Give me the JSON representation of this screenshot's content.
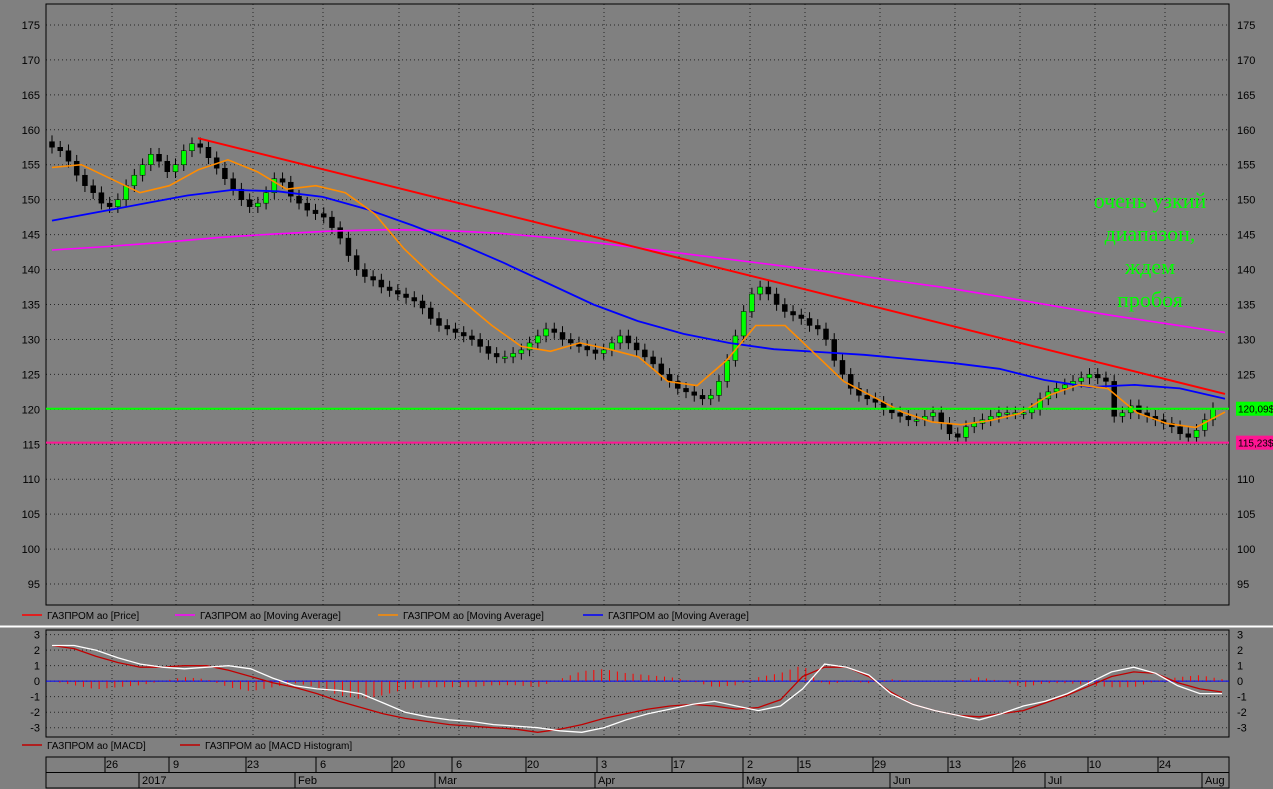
{
  "chart_data": [
    {
      "type": "candlestick",
      "title": "",
      "ylim": [
        92,
        178
      ],
      "yticks": [
        95,
        100,
        105,
        110,
        115,
        120,
        125,
        130,
        135,
        140,
        145,
        150,
        155,
        160,
        165,
        170,
        175
      ],
      "grid": true,
      "colors": {
        "up": "#00ff00",
        "down": "#000000",
        "ma_long": "#ff00ff",
        "ma_mid": "#0000ff",
        "ma_short": "#ff8c00",
        "trendline": "#ff0000",
        "support": "#00ff00",
        "low_level": "#ff1493"
      },
      "close_series": [
        157.5,
        157.0,
        155.5,
        153.5,
        152.0,
        151.0,
        149.5,
        149.0,
        150.0,
        152.0,
        153.5,
        155.0,
        156.5,
        155.5,
        154.0,
        155.0,
        157.0,
        158.0,
        157.5,
        156.0,
        154.5,
        153.0,
        151.5,
        150.0,
        149.0,
        149.5,
        151.0,
        153.0,
        152.5,
        150.5,
        149.5,
        148.5,
        148.0,
        147.5,
        146.0,
        144.5,
        142.0,
        140.0,
        139.0,
        138.5,
        137.5,
        137.0,
        136.5,
        136.0,
        135.5,
        134.5,
        133.0,
        132.0,
        131.5,
        131.0,
        130.5,
        130.0,
        129.0,
        128.0,
        127.5,
        127.5,
        128.0,
        128.5,
        129.5,
        130.5,
        131.5,
        131.0,
        130.0,
        129.5,
        129.0,
        128.5,
        128.0,
        128.5,
        129.5,
        130.5,
        129.5,
        128.5,
        127.5,
        126.5,
        125.0,
        124.0,
        123.0,
        122.5,
        122.0,
        121.5,
        122.0,
        124.0,
        127.0,
        130.5,
        134.0,
        136.5,
        137.5,
        136.5,
        135.0,
        134.0,
        133.5,
        133.0,
        132.0,
        131.5,
        130.0,
        127.0,
        125.0,
        123.0,
        122.0,
        121.5,
        121.0,
        120.0,
        119.5,
        119.0,
        118.5,
        118.5,
        119.0,
        119.5,
        118.0,
        116.5,
        116.0,
        117.5,
        118.0,
        118.5,
        119.0,
        119.5,
        119.5,
        119.5,
        119.5,
        120.0,
        121.5,
        122.5,
        123.0,
        123.5,
        124.0,
        124.5,
        125.0,
        124.5,
        124.0,
        119.0,
        119.5,
        120.5,
        119.5,
        119.0,
        118.5,
        118.0,
        117.5,
        116.5,
        116.0,
        117.0,
        118.5,
        120.1
      ],
      "ma_long_series": [
        142.8,
        143.3,
        143.9,
        144.6,
        145.1,
        145.5,
        145.7,
        145.6,
        145.2,
        144.5,
        143.6,
        142.6,
        141.6,
        140.6,
        139.6,
        138.5,
        137.4,
        136.1,
        134.7,
        133.4,
        132.2,
        131.0
      ],
      "ma_mid_series": [
        147.0,
        148.2,
        149.4,
        150.6,
        151.4,
        151.2,
        150.4,
        148.6,
        146.3,
        143.8,
        141.0,
        138.0,
        135.0,
        132.6,
        130.8,
        129.5,
        128.6,
        128.2,
        127.8,
        127.2,
        126.6,
        125.8,
        124.2,
        123.2,
        123.5,
        123.0,
        121.5
      ],
      "ma_short_series": [
        154.6,
        155.0,
        153.0,
        151.0,
        152.0,
        154.3,
        155.7,
        154.0,
        151.5,
        152.0,
        151.0,
        148.0,
        143.0,
        139.0,
        135.5,
        132.0,
        129.0,
        128.3,
        129.5,
        128.6,
        127.5,
        124.0,
        123.4,
        127.0,
        132.0,
        132.0,
        128.0,
        124.0,
        121.8,
        119.6,
        118.2,
        117.8,
        118.4,
        119.4,
        122.0,
        123.5,
        123.0,
        119.5,
        118.0,
        117.4,
        119.6
      ],
      "trendline": [
        [
          158.8,
          "start"
        ],
        [
          122.2,
          "end"
        ]
      ],
      "support_level": 120.09,
      "low_level": 115.23,
      "annotation": "очень узкий диапазон, ждем пробоя",
      "last_value_labels": [
        "120,09$",
        "115,23$"
      ],
      "legend": [
        "ГАЗПРОМ ао [Price]",
        "ГАЗПРОМ ао [Moving Average]",
        "ГАЗПРОМ ао [Moving Average]",
        "ГАЗПРОМ ао [Moving Average]"
      ]
    },
    {
      "type": "line",
      "title": "",
      "ylim": [
        -3.6,
        3.3
      ],
      "yticks": [
        -3,
        -2,
        -1,
        0,
        1,
        2,
        3
      ],
      "macd_series": [
        2.3,
        2.3,
        2.0,
        1.5,
        1.1,
        0.9,
        0.8,
        0.9,
        1.0,
        0.8,
        0.2,
        -0.3,
        -0.5,
        -0.6,
        -0.8,
        -1.4,
        -2.0,
        -2.3,
        -2.5,
        -2.6,
        -2.8,
        -2.9,
        -3.0,
        -3.2,
        -3.3,
        -3.0,
        -2.5,
        -2.1,
        -1.8,
        -1.5,
        -1.3,
        -1.6,
        -1.9,
        -1.6,
        -0.5,
        1.1,
        0.9,
        0.4,
        -0.8,
        -1.5,
        -1.9,
        -2.2,
        -2.5,
        -2.1,
        -1.6,
        -1.3,
        -0.8,
        -0.1,
        0.6,
        0.9,
        0.5,
        -0.3,
        -0.8,
        -0.8
      ],
      "signal_series": [
        2.3,
        2.1,
        1.6,
        1.2,
        0.9,
        0.9,
        1.0,
        1.0,
        0.7,
        0.3,
        -0.1,
        -0.4,
        -0.8,
        -1.3,
        -1.7,
        -2.1,
        -2.4,
        -2.6,
        -2.8,
        -2.9,
        -3.0,
        -3.1,
        -3.3,
        -3.1,
        -2.8,
        -2.4,
        -2.1,
        -1.8,
        -1.6,
        -1.5,
        -1.6,
        -1.8,
        -1.7,
        -1.2,
        0.3,
        0.9,
        0.9,
        0.3,
        -0.7,
        -1.5,
        -1.9,
        -2.2,
        -2.3,
        -2.1,
        -1.9,
        -1.4,
        -0.9,
        -0.3,
        0.3,
        0.6,
        0.5,
        -0.1,
        -0.5,
        -0.7
      ],
      "legend": [
        "ГАЗПРОМ ао [MACD]",
        "ГАЗПРОМ ао [MACD Histogram]"
      ],
      "colors": {
        "macd": "#ffffff",
        "signal": "#c00000",
        "hist": "#ff0000",
        "zero": "#0000ff"
      }
    }
  ],
  "x_axis": {
    "days": [
      "26",
      "9",
      "23",
      "6",
      "20",
      "6",
      "20",
      "3",
      "17",
      "2",
      "15",
      "29",
      "13",
      "26",
      "10",
      "24"
    ],
    "months": [
      "2017",
      "Feb",
      "Mar",
      "Apr",
      "May",
      "Jun",
      "Jul",
      "Aug"
    ]
  }
}
